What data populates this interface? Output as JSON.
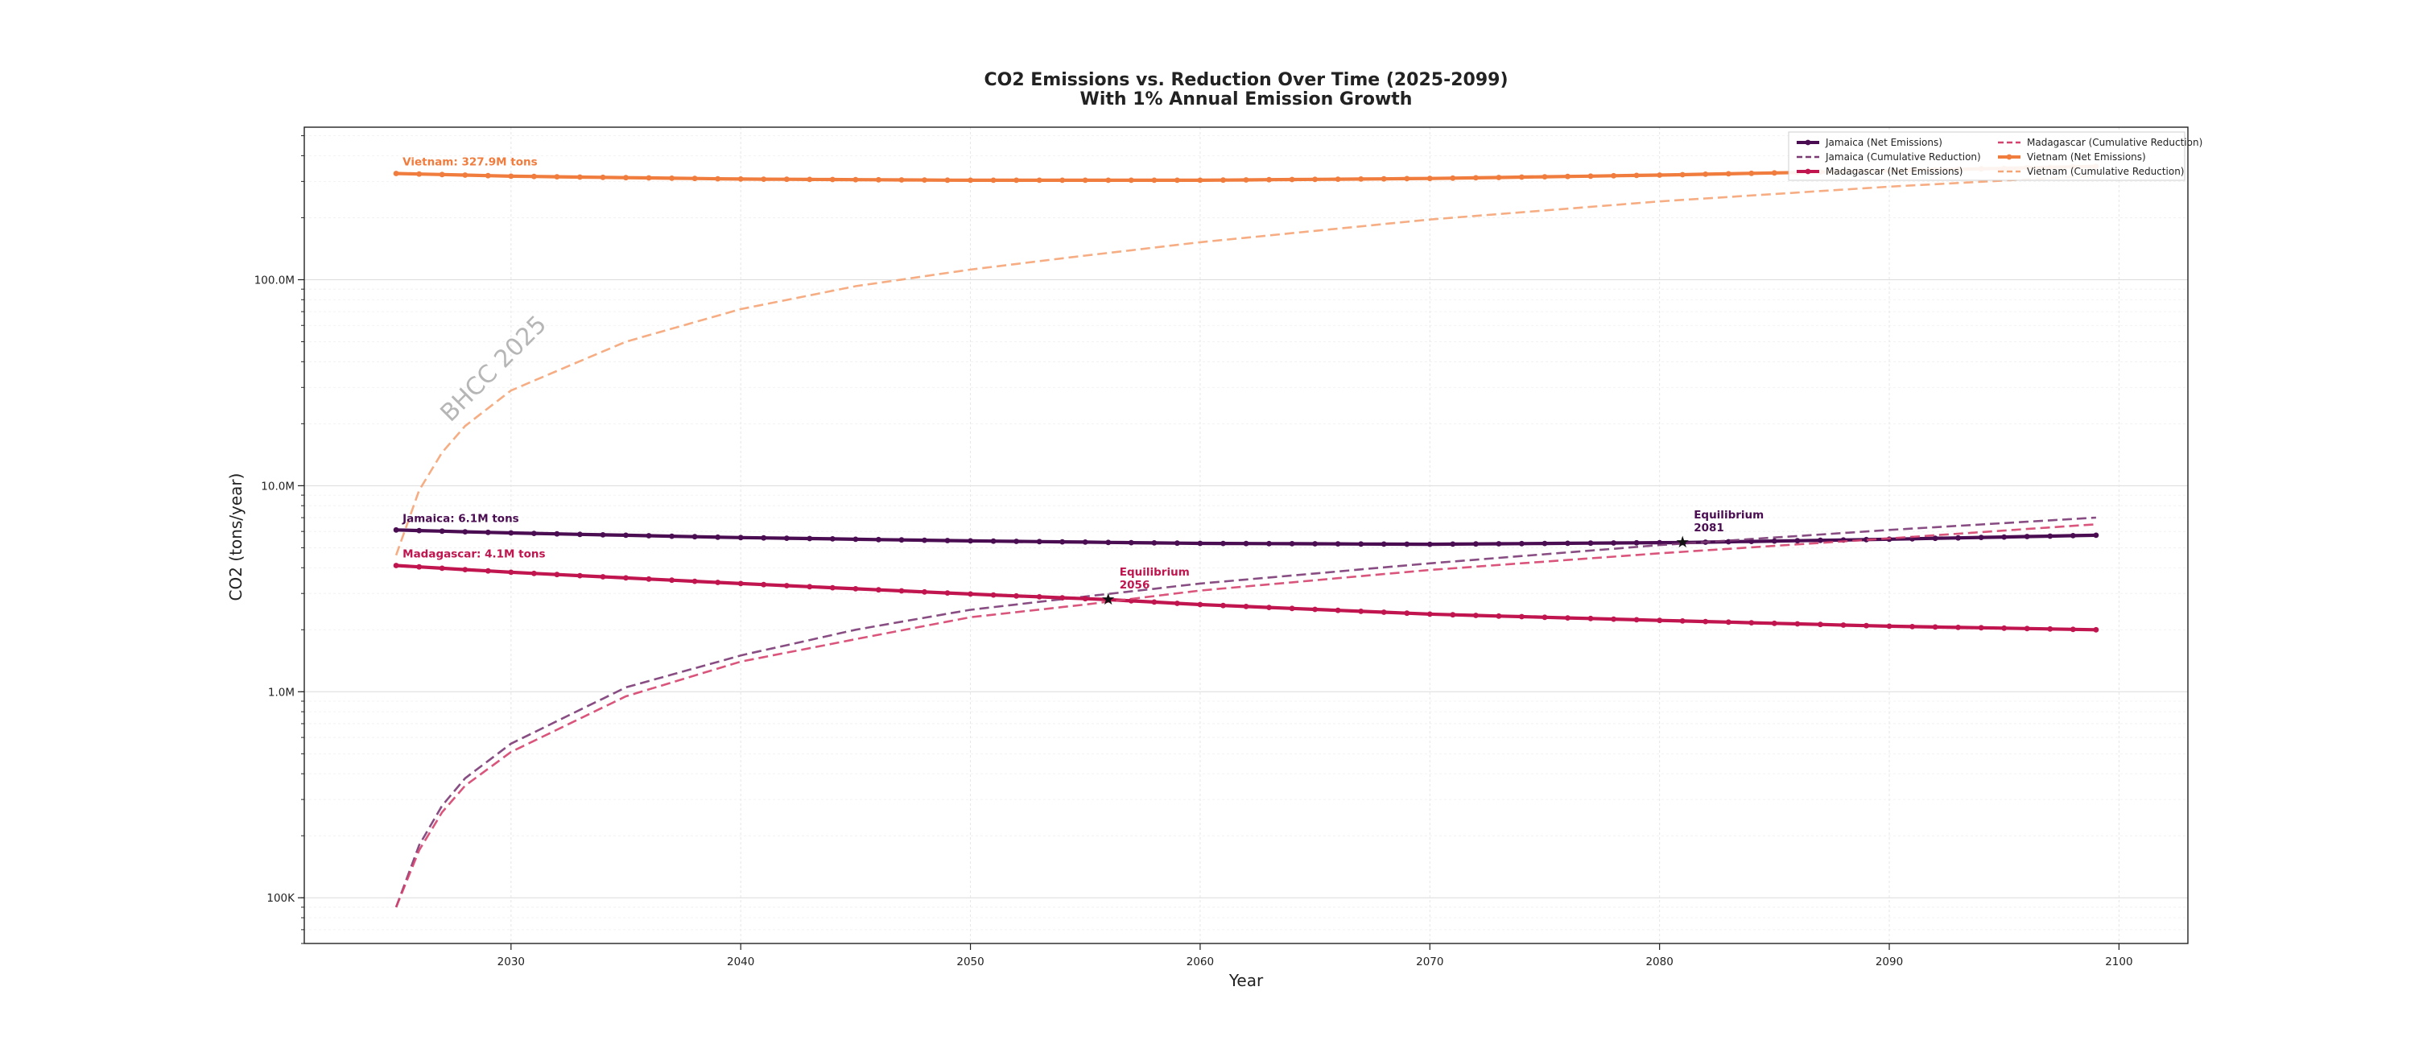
{
  "chart_data": {
    "type": "line",
    "title": "CO2 Emissions vs. Reduction Over Time (2025-2099)",
    "subtitle": "With 1% Annual Emission Growth",
    "xlabel": "Year",
    "ylabel": "CO2 (tons/year)",
    "yscale": "log",
    "xlim": [
      2021,
      2103
    ],
    "ylim": [
      60000,
      550000000
    ],
    "x_ticks": [
      2030,
      2040,
      2050,
      2060,
      2070,
      2080,
      2090,
      2100
    ],
    "y_ticks": [
      {
        "value": 100000,
        "label": "100K"
      },
      {
        "value": 1000000,
        "label": "1.0M"
      },
      {
        "value": 10000000,
        "label": "10.0M"
      },
      {
        "value": 100000000,
        "label": "100.0M"
      }
    ],
    "grid": true,
    "legend_position": "top-right",
    "legend_columns": 2,
    "x_range": [
      2025,
      2099
    ],
    "series": [
      {
        "name": "Jamaica (Net Emissions)",
        "style": "solid-marker",
        "color": "#4a0d52",
        "values": [
          [
            2025,
            6100000
          ],
          [
            2030,
            5900000
          ],
          [
            2040,
            5600000
          ],
          [
            2050,
            5400000
          ],
          [
            2060,
            5250000
          ],
          [
            2070,
            5200000
          ],
          [
            2081,
            5300000
          ],
          [
            2090,
            5500000
          ],
          [
            2099,
            5750000
          ]
        ]
      },
      {
        "name": "Jamaica (Cumulative Reduction)",
        "style": "dashed",
        "color": "#7b3a74",
        "values": [
          [
            2025,
            90000
          ],
          [
            2026,
            180000
          ],
          [
            2027,
            280000
          ],
          [
            2028,
            380000
          ],
          [
            2030,
            560000
          ],
          [
            2035,
            1050000
          ],
          [
            2040,
            1500000
          ],
          [
            2045,
            2000000
          ],
          [
            2050,
            2500000
          ],
          [
            2055,
            2900000
          ],
          [
            2060,
            3350000
          ],
          [
            2070,
            4200000
          ],
          [
            2080,
            5150000
          ],
          [
            2090,
            6100000
          ],
          [
            2099,
            7000000
          ]
        ]
      },
      {
        "name": "Madagascar (Net Emissions)",
        "style": "solid-marker",
        "color": "#c0154f",
        "values": [
          [
            2025,
            4100000
          ],
          [
            2030,
            3800000
          ],
          [
            2040,
            3350000
          ],
          [
            2050,
            2980000
          ],
          [
            2056,
            2800000
          ],
          [
            2060,
            2650000
          ],
          [
            2070,
            2380000
          ],
          [
            2080,
            2220000
          ],
          [
            2090,
            2080000
          ],
          [
            2099,
            2000000
          ]
        ]
      },
      {
        "name": "Madagascar (Cumulative Reduction)",
        "style": "dashed",
        "color": "#d6426e",
        "values": [
          [
            2025,
            90000
          ],
          [
            2026,
            170000
          ],
          [
            2027,
            260000
          ],
          [
            2028,
            350000
          ],
          [
            2030,
            510000
          ],
          [
            2035,
            950000
          ],
          [
            2040,
            1400000
          ],
          [
            2045,
            1800000
          ],
          [
            2050,
            2300000
          ],
          [
            2055,
            2650000
          ],
          [
            2060,
            3100000
          ],
          [
            2070,
            3900000
          ],
          [
            2080,
            4700000
          ],
          [
            2090,
            5550000
          ],
          [
            2099,
            6500000
          ]
        ]
      },
      {
        "name": "Vietnam (Net Emissions)",
        "style": "solid-marker",
        "color": "#f07c3e",
        "values": [
          [
            2025,
            327900000
          ],
          [
            2030,
            318000000
          ],
          [
            2040,
            308000000
          ],
          [
            2050,
            304000000
          ],
          [
            2060,
            304000000
          ],
          [
            2070,
            310000000
          ],
          [
            2080,
            322000000
          ],
          [
            2090,
            338000000
          ],
          [
            2099,
            355000000
          ]
        ]
      },
      {
        "name": "Vietnam (Cumulative Reduction)",
        "style": "dashed",
        "color": "#f5a475",
        "values": [
          [
            2025,
            4600000
          ],
          [
            2026,
            9500000
          ],
          [
            2027,
            14500000
          ],
          [
            2028,
            19500000
          ],
          [
            2030,
            29000000
          ],
          [
            2035,
            50000000
          ],
          [
            2040,
            72000000
          ],
          [
            2045,
            93000000
          ],
          [
            2050,
            112000000
          ],
          [
            2055,
            131000000
          ],
          [
            2060,
            152000000
          ],
          [
            2070,
            196000000
          ],
          [
            2080,
            240000000
          ],
          [
            2090,
            283000000
          ],
          [
            2099,
            320000000
          ]
        ]
      }
    ],
    "annotations": [
      {
        "text": "Vietnam: 327.9M tons",
        "x": 2025,
        "y": 327900000,
        "color": "#f07c3e"
      },
      {
        "text": "Jamaica: 6.1M tons",
        "x": 2025,
        "y": 6100000,
        "color": "#4a0d52"
      },
      {
        "text": "Madagascar: 4.1M tons",
        "x": 2025,
        "y": 4100000,
        "color": "#c0154f"
      }
    ],
    "equilibrium_points": [
      {
        "label": "Equilibrium",
        "year_label": "2081",
        "x": 2081,
        "y": 5300000,
        "color": "#4a0d52"
      },
      {
        "label": "Equilibrium",
        "year_label": "2056",
        "x": 2056,
        "y": 2800000,
        "color": "#c0154f"
      }
    ],
    "watermark": "BHCC 2025"
  }
}
